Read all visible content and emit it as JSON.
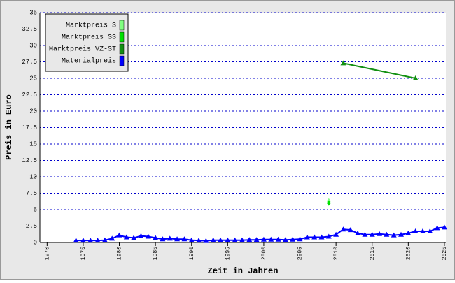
{
  "chart_data": {
    "type": "line",
    "xlabel": "Zeit in Jahren",
    "ylabel": "Preis in Euro",
    "xlim": [
      1969,
      2025.2
    ],
    "xticks": [
      1970,
      1975,
      1980,
      1985,
      1990,
      1995,
      2000,
      2005,
      2010,
      2015,
      2020,
      2025
    ],
    "ylim": [
      0,
      35
    ],
    "yticks": [
      0,
      2.5,
      5,
      7.5,
      10,
      12.5,
      15,
      17.5,
      20,
      22.5,
      25,
      27.5,
      30,
      32.5,
      35
    ],
    "grid": true,
    "legend": "upper left",
    "series": [
      {
        "name": "Marktpreis S",
        "color": "#80ff80",
        "marker": "diamond",
        "x": [
          2009
        ],
        "values": [
          6.3
        ]
      },
      {
        "name": "Marktpreis SS",
        "color": "#00e000",
        "marker": "diamond",
        "x": [
          2009
        ],
        "values": [
          6.0
        ]
      },
      {
        "name": "Marktpreis VZ-ST",
        "color": "#129012",
        "marker": "triangle",
        "x": [
          2011,
          2021
        ],
        "values": [
          27.3,
          25.0
        ]
      },
      {
        "name": "Materialpreis",
        "color": "#0000ff",
        "marker": "triangle",
        "x": [
          1974,
          1975,
          1976,
          1977,
          1978,
          1979,
          1980,
          1981,
          1982,
          1983,
          1984,
          1985,
          1986,
          1987,
          1988,
          1989,
          1990,
          1991,
          1992,
          1993,
          1994,
          1995,
          1996,
          1997,
          1998,
          1999,
          2000,
          2001,
          2002,
          2003,
          2004,
          2005,
          2006,
          2007,
          2008,
          2009,
          2010,
          2011,
          2012,
          2013,
          2014,
          2015,
          2016,
          2017,
          2018,
          2019,
          2020,
          2021,
          2022,
          2023,
          2024,
          2025
        ],
        "values": [
          0.3,
          0.3,
          0.3,
          0.3,
          0.35,
          0.6,
          1.1,
          0.8,
          0.7,
          1.0,
          0.9,
          0.7,
          0.5,
          0.6,
          0.5,
          0.5,
          0.35,
          0.3,
          0.25,
          0.35,
          0.35,
          0.35,
          0.35,
          0.35,
          0.4,
          0.4,
          0.45,
          0.45,
          0.45,
          0.4,
          0.45,
          0.5,
          0.8,
          0.8,
          0.8,
          0.9,
          1.2,
          2.0,
          1.9,
          1.4,
          1.2,
          1.2,
          1.3,
          1.2,
          1.1,
          1.2,
          1.4,
          1.7,
          1.7,
          1.7,
          2.2,
          2.3
        ]
      }
    ]
  }
}
